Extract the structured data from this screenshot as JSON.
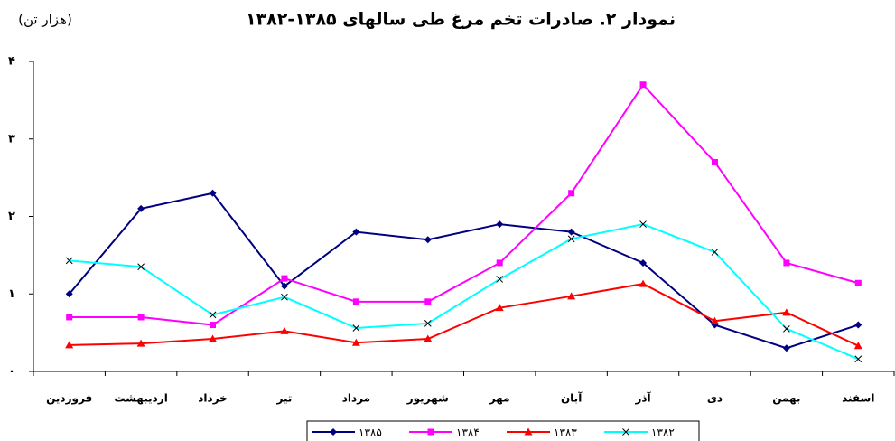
{
  "chart_data": {
    "type": "line",
    "title": "نمودار ۲. صادرات تخم مرغ طی سالهای ۱۳۸۵-۱۳۸۲",
    "y_label": "(هزار تن)",
    "categories": [
      "فروردین",
      "اردیبهشت",
      "خرداد",
      "تیر",
      "مرداد",
      "شهریور",
      "مهر",
      "آبان",
      "آذر",
      "دی",
      "بهمن",
      "اسفند"
    ],
    "ylim": [
      0,
      4
    ],
    "yticks": [
      {
        "value": 0,
        "label": "۰"
      },
      {
        "value": 1,
        "label": "۱"
      },
      {
        "value": 2,
        "label": "۲"
      },
      {
        "value": 3,
        "label": "۳"
      },
      {
        "value": 4,
        "label": "۴"
      }
    ],
    "grid": false,
    "series": [
      {
        "name": "۱۳۸۵",
        "color": "#000080",
        "marker": "diamond",
        "values": [
          1.0,
          2.1,
          2.3,
          1.1,
          1.8,
          1.7,
          1.9,
          1.8,
          1.4,
          0.6,
          0.3,
          0.6
        ]
      },
      {
        "name": "۱۳۸۴",
        "color": "#ff00ff",
        "marker": "square",
        "values": [
          0.7,
          0.7,
          0.6,
          1.2,
          0.9,
          0.9,
          1.4,
          2.3,
          3.7,
          2.7,
          1.4,
          1.14
        ]
      },
      {
        "name": "۱۳۸۳",
        "color": "#ff0000",
        "marker": "triangle",
        "values": [
          0.34,
          0.36,
          0.42,
          0.52,
          0.37,
          0.42,
          0.82,
          0.97,
          1.13,
          0.65,
          0.76,
          0.33
        ]
      },
      {
        "name": "۱۳۸۲",
        "color": "#00ffff",
        "marker": "x",
        "values": [
          1.43,
          1.35,
          0.73,
          0.96,
          0.56,
          0.62,
          1.19,
          1.71,
          1.9,
          1.54,
          0.55,
          0.16
        ]
      }
    ]
  }
}
